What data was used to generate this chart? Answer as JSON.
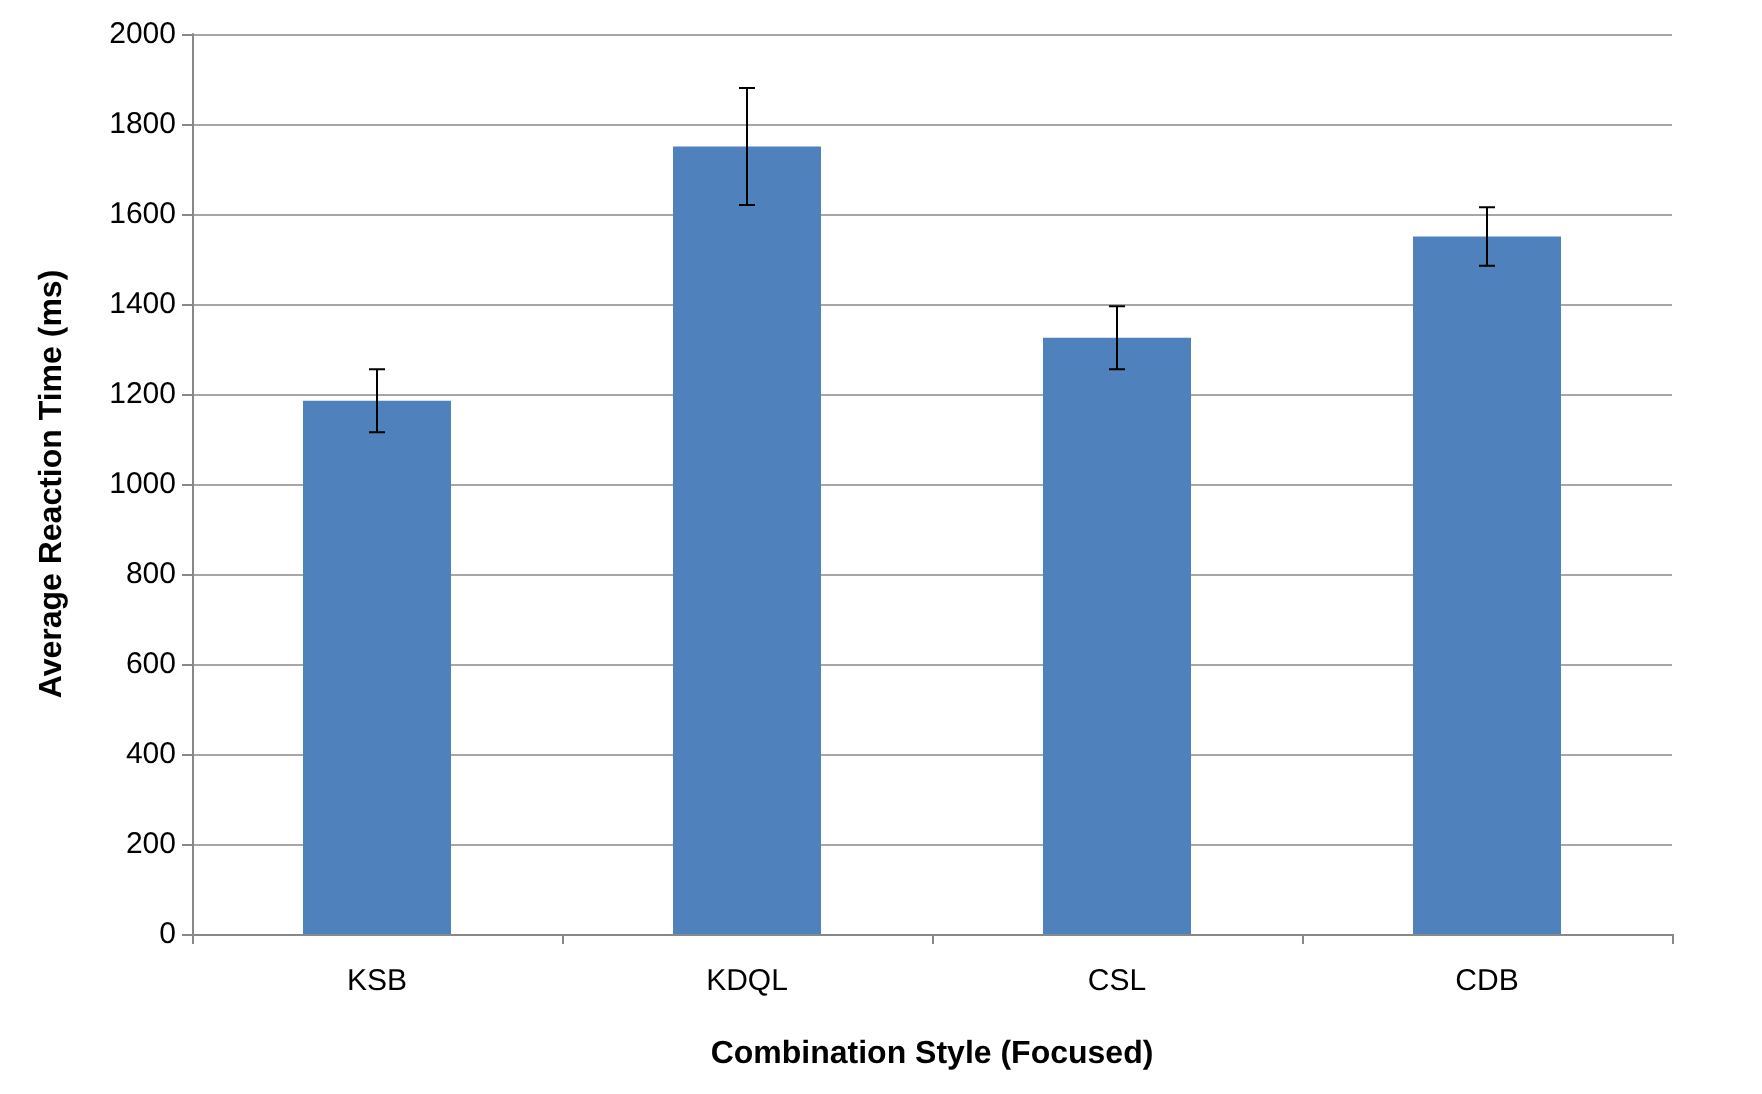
{
  "chart_data": {
    "type": "bar",
    "xlabel": "Combination Style (Focused)",
    "ylabel": "Average Reaction Time (ms)",
    "categories": [
      "KSB",
      "KDQL",
      "CSL",
      "CDB"
    ],
    "values": [
      1185,
      1750,
      1325,
      1550
    ],
    "errors": [
      70,
      130,
      70,
      65
    ],
    "color": "#4f81bd",
    "ylim": [
      0,
      2000
    ],
    "yticks": [
      0,
      200,
      400,
      600,
      800,
      1000,
      1200,
      1400,
      1600,
      1800,
      2000
    ],
    "grid": "y"
  }
}
